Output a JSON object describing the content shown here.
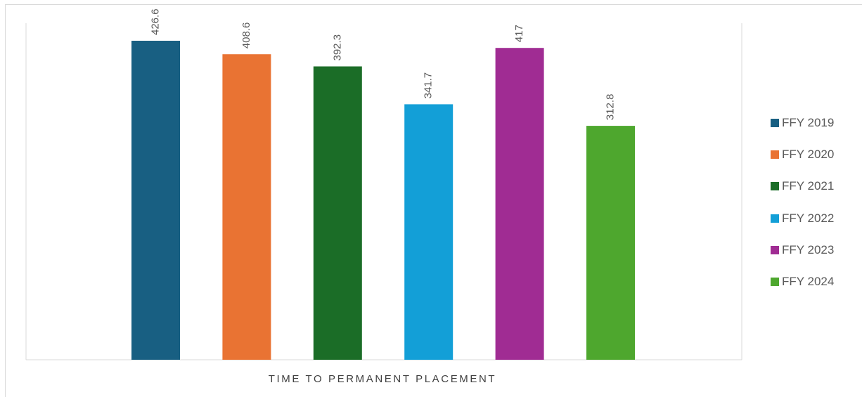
{
  "chart_data": {
    "type": "bar",
    "xlabel": "TIME TO PERMANENT PLACEMENT",
    "ylim": [
      0,
      460
    ],
    "grid": false,
    "legend_position": "right",
    "series": [
      {
        "name": "FFY 2019",
        "value": 426.6,
        "label": "426.6",
        "color": "#185F82"
      },
      {
        "name": "FFY 2020",
        "value": 408.6,
        "label": "408.6",
        "color": "#E97333"
      },
      {
        "name": "FFY 2021",
        "value": 392.3,
        "label": "392.3",
        "color": "#1B6D27"
      },
      {
        "name": "FFY 2022",
        "value": 341.7,
        "label": "341.7",
        "color": "#139FD7"
      },
      {
        "name": "FFY 2023",
        "value": 417,
        "label": "417",
        "color": "#A02C93"
      },
      {
        "name": "FFY 2024",
        "value": 312.8,
        "label": "312.8",
        "color": "#4EA72E"
      }
    ]
  }
}
